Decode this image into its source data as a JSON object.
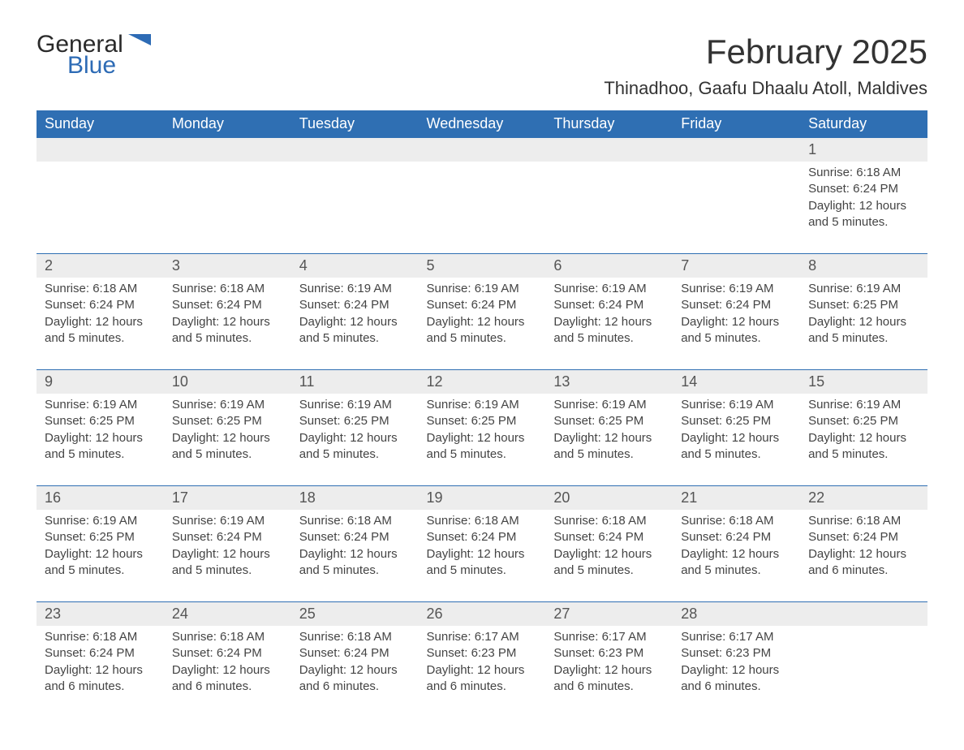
{
  "logo": {
    "general": "General",
    "blue": "Blue"
  },
  "title": "February 2025",
  "location": "Thinadhoo, Gaafu Dhaalu Atoll, Maldives",
  "colors": {
    "header_bg": "#2f6fb3",
    "header_text": "#ffffff",
    "daynum_bg": "#ededed",
    "row_border": "#2f6fb3",
    "body_text": "#444444",
    "logo_blue": "#2d6bb5",
    "logo_dark": "#2a2a2a",
    "page_bg": "#ffffff"
  },
  "typography": {
    "title_fontsize": 42,
    "location_fontsize": 22,
    "header_fontsize": 18,
    "daynum_fontsize": 18,
    "detail_fontsize": 15
  },
  "weekdays": [
    "Sunday",
    "Monday",
    "Tuesday",
    "Wednesday",
    "Thursday",
    "Friday",
    "Saturday"
  ],
  "weeks": [
    [
      null,
      null,
      null,
      null,
      null,
      null,
      {
        "day": "1",
        "sunrise": "Sunrise: 6:18 AM",
        "sunset": "Sunset: 6:24 PM",
        "daylight": "Daylight: 12 hours and 5 minutes."
      }
    ],
    [
      {
        "day": "2",
        "sunrise": "Sunrise: 6:18 AM",
        "sunset": "Sunset: 6:24 PM",
        "daylight": "Daylight: 12 hours and 5 minutes."
      },
      {
        "day": "3",
        "sunrise": "Sunrise: 6:18 AM",
        "sunset": "Sunset: 6:24 PM",
        "daylight": "Daylight: 12 hours and 5 minutes."
      },
      {
        "day": "4",
        "sunrise": "Sunrise: 6:19 AM",
        "sunset": "Sunset: 6:24 PM",
        "daylight": "Daylight: 12 hours and 5 minutes."
      },
      {
        "day": "5",
        "sunrise": "Sunrise: 6:19 AM",
        "sunset": "Sunset: 6:24 PM",
        "daylight": "Daylight: 12 hours and 5 minutes."
      },
      {
        "day": "6",
        "sunrise": "Sunrise: 6:19 AM",
        "sunset": "Sunset: 6:24 PM",
        "daylight": "Daylight: 12 hours and 5 minutes."
      },
      {
        "day": "7",
        "sunrise": "Sunrise: 6:19 AM",
        "sunset": "Sunset: 6:24 PM",
        "daylight": "Daylight: 12 hours and 5 minutes."
      },
      {
        "day": "8",
        "sunrise": "Sunrise: 6:19 AM",
        "sunset": "Sunset: 6:25 PM",
        "daylight": "Daylight: 12 hours and 5 minutes."
      }
    ],
    [
      {
        "day": "9",
        "sunrise": "Sunrise: 6:19 AM",
        "sunset": "Sunset: 6:25 PM",
        "daylight": "Daylight: 12 hours and 5 minutes."
      },
      {
        "day": "10",
        "sunrise": "Sunrise: 6:19 AM",
        "sunset": "Sunset: 6:25 PM",
        "daylight": "Daylight: 12 hours and 5 minutes."
      },
      {
        "day": "11",
        "sunrise": "Sunrise: 6:19 AM",
        "sunset": "Sunset: 6:25 PM",
        "daylight": "Daylight: 12 hours and 5 minutes."
      },
      {
        "day": "12",
        "sunrise": "Sunrise: 6:19 AM",
        "sunset": "Sunset: 6:25 PM",
        "daylight": "Daylight: 12 hours and 5 minutes."
      },
      {
        "day": "13",
        "sunrise": "Sunrise: 6:19 AM",
        "sunset": "Sunset: 6:25 PM",
        "daylight": "Daylight: 12 hours and 5 minutes."
      },
      {
        "day": "14",
        "sunrise": "Sunrise: 6:19 AM",
        "sunset": "Sunset: 6:25 PM",
        "daylight": "Daylight: 12 hours and 5 minutes."
      },
      {
        "day": "15",
        "sunrise": "Sunrise: 6:19 AM",
        "sunset": "Sunset: 6:25 PM",
        "daylight": "Daylight: 12 hours and 5 minutes."
      }
    ],
    [
      {
        "day": "16",
        "sunrise": "Sunrise: 6:19 AM",
        "sunset": "Sunset: 6:25 PM",
        "daylight": "Daylight: 12 hours and 5 minutes."
      },
      {
        "day": "17",
        "sunrise": "Sunrise: 6:19 AM",
        "sunset": "Sunset: 6:24 PM",
        "daylight": "Daylight: 12 hours and 5 minutes."
      },
      {
        "day": "18",
        "sunrise": "Sunrise: 6:18 AM",
        "sunset": "Sunset: 6:24 PM",
        "daylight": "Daylight: 12 hours and 5 minutes."
      },
      {
        "day": "19",
        "sunrise": "Sunrise: 6:18 AM",
        "sunset": "Sunset: 6:24 PM",
        "daylight": "Daylight: 12 hours and 5 minutes."
      },
      {
        "day": "20",
        "sunrise": "Sunrise: 6:18 AM",
        "sunset": "Sunset: 6:24 PM",
        "daylight": "Daylight: 12 hours and 5 minutes."
      },
      {
        "day": "21",
        "sunrise": "Sunrise: 6:18 AM",
        "sunset": "Sunset: 6:24 PM",
        "daylight": "Daylight: 12 hours and 5 minutes."
      },
      {
        "day": "22",
        "sunrise": "Sunrise: 6:18 AM",
        "sunset": "Sunset: 6:24 PM",
        "daylight": "Daylight: 12 hours and 6 minutes."
      }
    ],
    [
      {
        "day": "23",
        "sunrise": "Sunrise: 6:18 AM",
        "sunset": "Sunset: 6:24 PM",
        "daylight": "Daylight: 12 hours and 6 minutes."
      },
      {
        "day": "24",
        "sunrise": "Sunrise: 6:18 AM",
        "sunset": "Sunset: 6:24 PM",
        "daylight": "Daylight: 12 hours and 6 minutes."
      },
      {
        "day": "25",
        "sunrise": "Sunrise: 6:18 AM",
        "sunset": "Sunset: 6:24 PM",
        "daylight": "Daylight: 12 hours and 6 minutes."
      },
      {
        "day": "26",
        "sunrise": "Sunrise: 6:17 AM",
        "sunset": "Sunset: 6:23 PM",
        "daylight": "Daylight: 12 hours and 6 minutes."
      },
      {
        "day": "27",
        "sunrise": "Sunrise: 6:17 AM",
        "sunset": "Sunset: 6:23 PM",
        "daylight": "Daylight: 12 hours and 6 minutes."
      },
      {
        "day": "28",
        "sunrise": "Sunrise: 6:17 AM",
        "sunset": "Sunset: 6:23 PM",
        "daylight": "Daylight: 12 hours and 6 minutes."
      },
      null
    ]
  ]
}
